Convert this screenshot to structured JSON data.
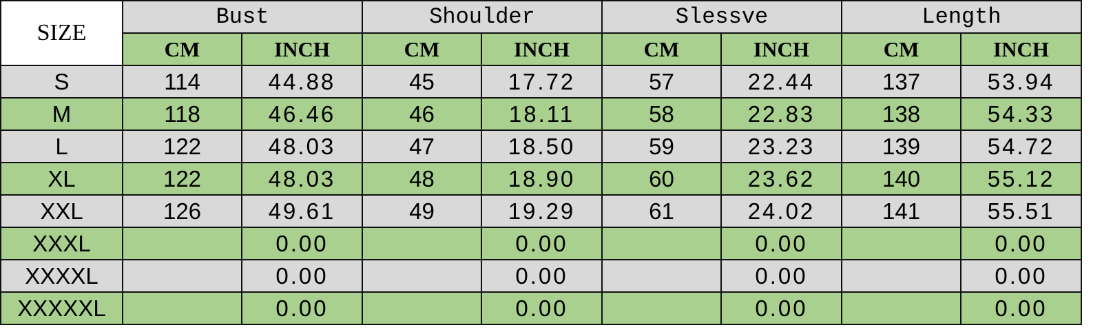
{
  "header": {
    "size_label": "SIZE",
    "groups": [
      "Bust",
      "Shoulder",
      "Slessve",
      "Length"
    ],
    "units": [
      "CM",
      "INCH"
    ]
  },
  "colors": {
    "gray": "#d9d9d9",
    "green": "#a9d08e"
  },
  "rows": [
    {
      "size": "S",
      "values": [
        "114",
        "44.88",
        "45",
        "17.72",
        "57",
        "22.44",
        "137",
        "53.94"
      ]
    },
    {
      "size": "M",
      "values": [
        "118",
        "46.46",
        "46",
        "18.11",
        "58",
        "22.83",
        "138",
        "54.33"
      ]
    },
    {
      "size": "L",
      "values": [
        "122",
        "48.03",
        "47",
        "18.50",
        "59",
        "23.23",
        "139",
        "54.72"
      ]
    },
    {
      "size": "XL",
      "values": [
        "122",
        "48.03",
        "48",
        "18.90",
        "60",
        "23.62",
        "140",
        "55.12"
      ]
    },
    {
      "size": "XXL",
      "values": [
        "126",
        "49.61",
        "49",
        "19.29",
        "61",
        "24.02",
        "141",
        "55.51"
      ]
    },
    {
      "size": "XXXL",
      "values": [
        "",
        "0.00",
        "",
        "0.00",
        "",
        "0.00",
        "",
        "0.00"
      ]
    },
    {
      "size": "XXXXL",
      "values": [
        "",
        "0.00",
        "",
        "0.00",
        "",
        "0.00",
        "",
        "0.00"
      ]
    },
    {
      "size": "XXXXXL",
      "values": [
        "",
        "0.00",
        "",
        "0.00",
        "",
        "0.00",
        "",
        "0.00"
      ]
    }
  ]
}
